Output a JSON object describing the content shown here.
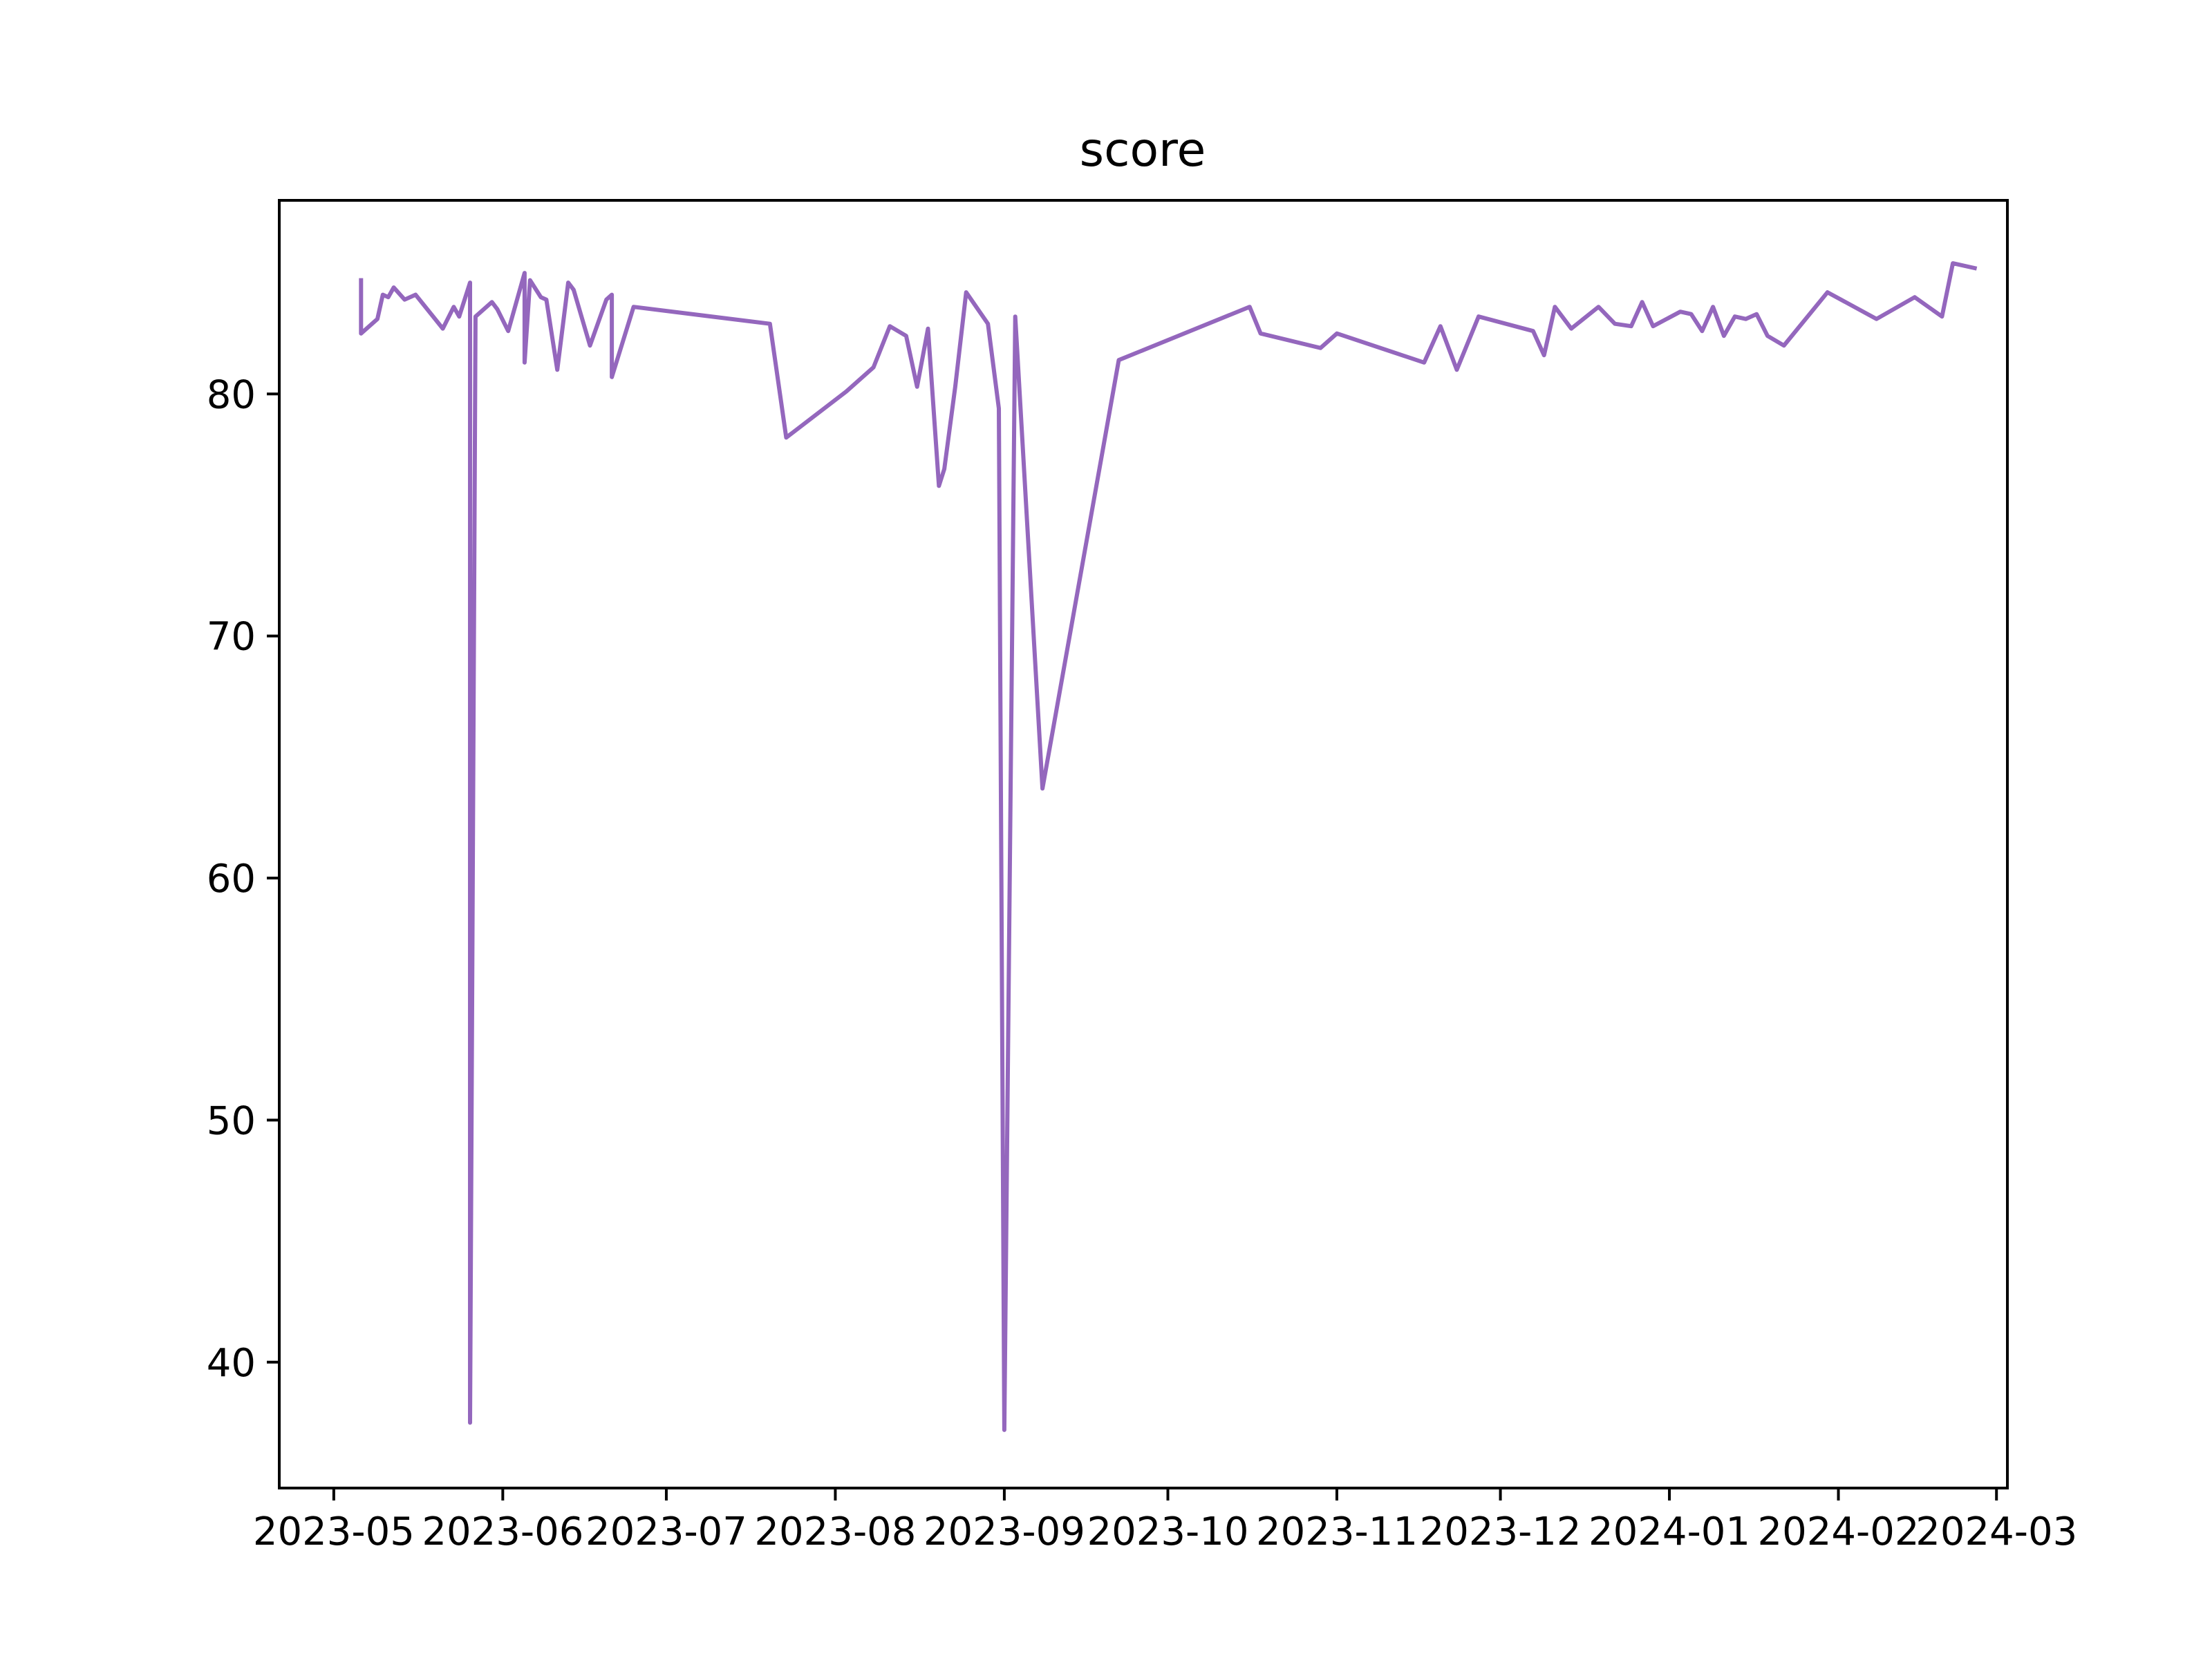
{
  "chart_data": {
    "type": "line",
    "title": "score",
    "xlabel": "",
    "ylabel": "",
    "x_axis_type": "date",
    "xlim": [
      "2023-04-21",
      "2024-03-03"
    ],
    "ylim": [
      34.8,
      88.0
    ],
    "x_ticks": [
      "2023-05-01",
      "2023-06-01",
      "2023-07-01",
      "2023-08-01",
      "2023-09-01",
      "2023-10-01",
      "2023-11-01",
      "2023-12-01",
      "2024-01-01",
      "2024-02-01",
      "2024-03-01"
    ],
    "x_tick_labels": [
      "2023-05",
      "2023-06",
      "2023-07",
      "2023-08",
      "2023-09",
      "2023-10",
      "2023-11",
      "2023-12",
      "2024-01",
      "2024-02",
      "2024-03"
    ],
    "y_ticks": [
      40,
      50,
      60,
      70,
      80
    ],
    "y_tick_labels": [
      "40",
      "50",
      "60",
      "70",
      "80"
    ],
    "grid": false,
    "legend": "none",
    "line_color": "#9467bd",
    "series": [
      {
        "points": [
          [
            "2023-05-06",
            84.7
          ],
          [
            "2023-05-06",
            82.5
          ],
          [
            "2023-05-09",
            83.1
          ],
          [
            "2023-05-10",
            84.1
          ],
          [
            "2023-05-11",
            84.0
          ],
          [
            "2023-05-12",
            84.4
          ],
          [
            "2023-05-14",
            83.9
          ],
          [
            "2023-05-16",
            84.1
          ],
          [
            "2023-05-21",
            82.7
          ],
          [
            "2023-05-23",
            83.6
          ],
          [
            "2023-05-24",
            83.2
          ],
          [
            "2023-05-26",
            84.6
          ],
          [
            "2023-05-26",
            37.5
          ],
          [
            "2023-05-27",
            83.2
          ],
          [
            "2023-05-30",
            83.8
          ],
          [
            "2023-05-31",
            83.5
          ],
          [
            "2023-06-02",
            82.6
          ],
          [
            "2023-06-05",
            85.0
          ],
          [
            "2023-06-05",
            81.3
          ],
          [
            "2023-06-06",
            84.7
          ],
          [
            "2023-06-08",
            84.0
          ],
          [
            "2023-06-09",
            83.9
          ],
          [
            "2023-06-11",
            81.0
          ],
          [
            "2023-06-13",
            84.6
          ],
          [
            "2023-06-14",
            84.3
          ],
          [
            "2023-06-17",
            82.0
          ],
          [
            "2023-06-20",
            83.9
          ],
          [
            "2023-06-21",
            84.1
          ],
          [
            "2023-06-21",
            80.7
          ],
          [
            "2023-06-25",
            83.6
          ],
          [
            "2023-07-20",
            82.9
          ],
          [
            "2023-07-23",
            78.2
          ],
          [
            "2023-08-03",
            80.1
          ],
          [
            "2023-08-08",
            81.1
          ],
          [
            "2023-08-11",
            82.8
          ],
          [
            "2023-08-14",
            82.4
          ],
          [
            "2023-08-16",
            80.3
          ],
          [
            "2023-08-18",
            82.7
          ],
          [
            "2023-08-20",
            76.2
          ],
          [
            "2023-08-21",
            76.9
          ],
          [
            "2023-08-23",
            80.3
          ],
          [
            "2023-08-25",
            84.2
          ],
          [
            "2023-08-29",
            82.9
          ],
          [
            "2023-08-31",
            79.4
          ],
          [
            "2023-09-01",
            37.2
          ],
          [
            "2023-09-03",
            83.2
          ],
          [
            "2023-09-08",
            63.7
          ],
          [
            "2023-09-22",
            81.4
          ],
          [
            "2023-10-16",
            83.6
          ],
          [
            "2023-10-18",
            82.5
          ],
          [
            "2023-10-29",
            81.9
          ],
          [
            "2023-11-01",
            82.5
          ],
          [
            "2023-11-17",
            81.3
          ],
          [
            "2023-11-20",
            82.8
          ],
          [
            "2023-11-23",
            81.0
          ],
          [
            "2023-11-27",
            83.2
          ],
          [
            "2023-12-07",
            82.6
          ],
          [
            "2023-12-09",
            81.6
          ],
          [
            "2023-12-11",
            83.6
          ],
          [
            "2023-12-14",
            82.7
          ],
          [
            "2023-12-19",
            83.6
          ],
          [
            "2023-12-22",
            82.9
          ],
          [
            "2023-12-25",
            82.8
          ],
          [
            "2023-12-27",
            83.8
          ],
          [
            "2023-12-29",
            82.8
          ],
          [
            "2024-01-03",
            83.4
          ],
          [
            "2024-01-05",
            83.3
          ],
          [
            "2024-01-07",
            82.6
          ],
          [
            "2024-01-09",
            83.6
          ],
          [
            "2024-01-11",
            82.4
          ],
          [
            "2024-01-13",
            83.2
          ],
          [
            "2024-01-15",
            83.1
          ],
          [
            "2024-01-17",
            83.3
          ],
          [
            "2024-01-19",
            82.4
          ],
          [
            "2024-01-22",
            82.0
          ],
          [
            "2024-01-30",
            84.2
          ],
          [
            "2024-02-08",
            83.1
          ],
          [
            "2024-02-15",
            84.0
          ],
          [
            "2024-02-20",
            83.2
          ],
          [
            "2024-02-22",
            85.4
          ],
          [
            "2024-02-26",
            85.2
          ]
        ]
      }
    ]
  }
}
